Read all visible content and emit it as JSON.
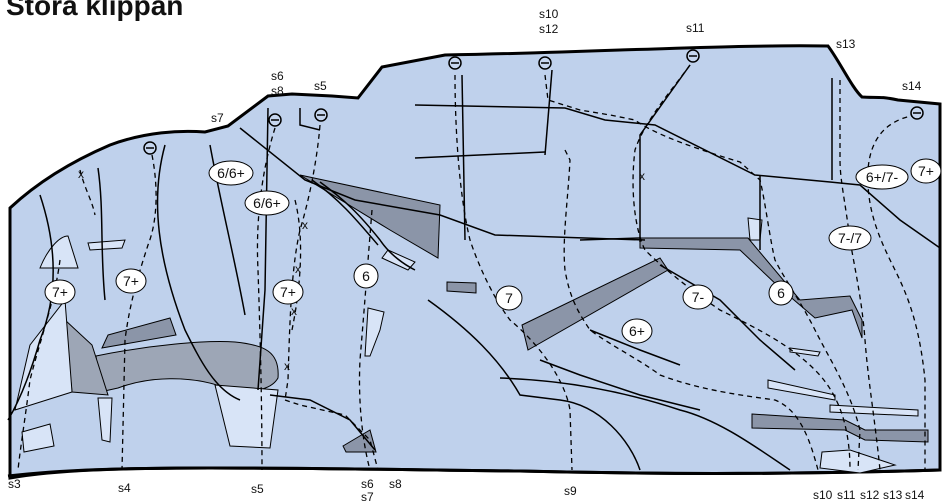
{
  "title": "Stora klippan",
  "top_labels": {
    "s10_s12": [
      "s10",
      "s12"
    ],
    "s11": "s11",
    "s13": "s13",
    "s14": "s14",
    "s6_s8": [
      "s6",
      "s8"
    ],
    "s5": "s5",
    "s7": "s7"
  },
  "bottom_labels": {
    "s3": "s3",
    "s4": "s4",
    "s5": "s5",
    "s6_s7": [
      "s6",
      "s7"
    ],
    "s8": "s8",
    "s9": "s9",
    "right_group": [
      "s10",
      "s11",
      "s12",
      "s13",
      "s14"
    ]
  },
  "grades": [
    "6/6+",
    "6/6+",
    "7+",
    "7+",
    "7+",
    "6",
    "7",
    "7-",
    "6+",
    "6",
    "7-/7",
    "6+/7-",
    "7+"
  ],
  "x_marks": [
    "x",
    "x",
    "x",
    "x",
    "x",
    "x"
  ],
  "colors": {
    "rock": "#bfd1ec",
    "outline": "#000000",
    "shade_dark": "#8b95a8",
    "shade_mid": "#9da6b6",
    "shade_light": "#d8e4f7",
    "anchor_fill": "#c6d6ef"
  },
  "legend": {
    "anchor_icon": "bolt-anchor-icon"
  }
}
